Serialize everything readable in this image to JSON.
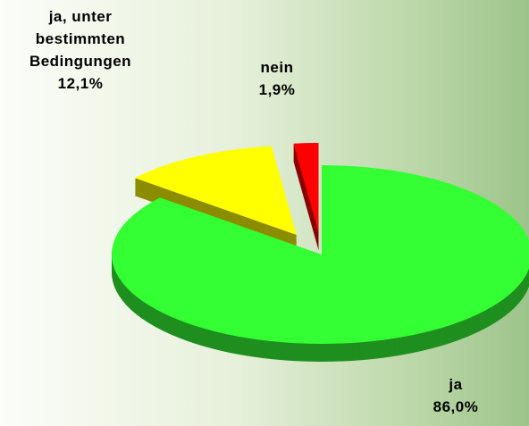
{
  "chart_data": {
    "type": "pie",
    "categories": [
      "ja",
      "ja, unter bestimmten Bedingungen",
      "nein"
    ],
    "values": [
      86.0,
      12.1,
      1.9
    ],
    "value_labels": [
      "86,0%",
      "12,1%",
      "1,9%"
    ],
    "colors": [
      "#33ff33",
      "#ffff00",
      "#ff0000"
    ]
  }
}
